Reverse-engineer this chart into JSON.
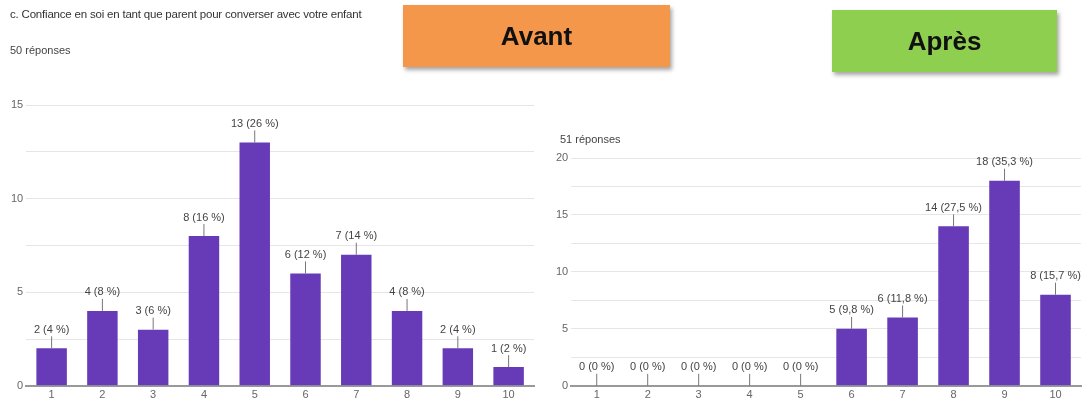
{
  "chart_data": [
    {
      "type": "bar",
      "title": "c. Confiance en soi en tant que parent pour converser avec votre enfant",
      "subtitle": "50 réponses",
      "annotations": [
        "Avant"
      ],
      "categories": [
        "1",
        "2",
        "3",
        "4",
        "5",
        "6",
        "7",
        "8",
        "9",
        "10"
      ],
      "values": [
        2,
        4,
        3,
        8,
        13,
        6,
        7,
        4,
        2,
        1
      ],
      "color": "#673ab7",
      "value_labels": [
        "2 (4 %)",
        "4 (8 %)",
        "3 (6 %)",
        "8 (16 %)",
        "13 (26 %)",
        "6 (12 %)",
        "7 (14 %)",
        "4 (8 %)",
        "2 (4 %)",
        "1 (2 %)"
      ],
      "ylim": [
        0,
        15
      ],
      "yticks": [
        0,
        {
          "value": 2.5,
          "label": null
        },
        5,
        {
          "value": 7.5,
          "label": null
        },
        10,
        {
          "value": 12.5,
          "label": null
        },
        15
      ],
      "grid": "y"
    },
    {
      "type": "bar",
      "subtitle": "51 réponses",
      "annotations": [
        "Après"
      ],
      "categories": [
        "1",
        "2",
        "3",
        "4",
        "5",
        "6",
        "7",
        "8",
        "9",
        "10"
      ],
      "values": [
        0,
        0,
        0,
        0,
        0,
        5,
        6,
        14,
        18,
        8
      ],
      "color": "#673ab7",
      "value_labels": [
        "0 (0 %)",
        "0 (0 %)",
        "0 (0 %)",
        "0 (0 %)",
        "0 (0 %)",
        "5 (9,8 %)",
        "6 (11,8 %)",
        "14 (27,5 %)",
        "18 (35,3 %)",
        "8 (15,7 %)"
      ],
      "ylim": [
        0,
        20
      ],
      "yticks": [
        0,
        {
          "value": 2.5,
          "label": null
        },
        5,
        {
          "value": 7.5,
          "label": null
        },
        10,
        {
          "value": 12.5,
          "label": null
        },
        15,
        {
          "value": 17.5,
          "label": null
        },
        20
      ],
      "grid": "y"
    }
  ]
}
